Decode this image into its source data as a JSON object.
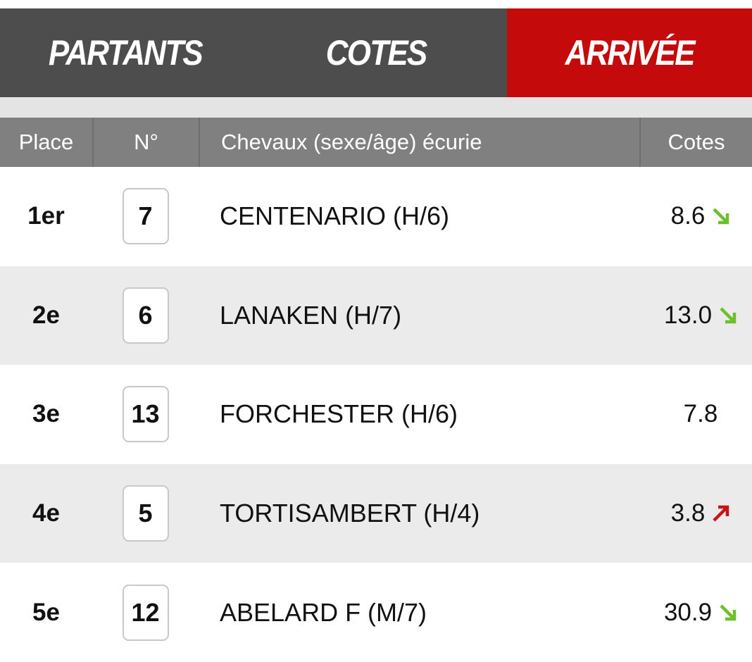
{
  "tabs": [
    "PARTANTS",
    "COTES",
    "ARRIVÉE"
  ],
  "active_tab": 2,
  "table": {
    "headers": [
      "Place",
      "N°",
      "Chevaux (sexe/âge) écurie",
      "Cotes"
    ],
    "rows": [
      {
        "place": "1er",
        "number": "7",
        "horse": "CENTENARIO (H/6)",
        "odds": "8.6",
        "trend": "down"
      },
      {
        "place": "2e",
        "number": "6",
        "horse": "LANAKEN (H/7)",
        "odds": "13.0",
        "trend": "down"
      },
      {
        "place": "3e",
        "number": "13",
        "horse": "FORCHESTER (H/6)",
        "odds": "7.8"
      },
      {
        "place": "4e",
        "number": "5",
        "horse": "TORTISAMBERT (H/4)",
        "odds": "3.8",
        "trend": "up"
      },
      {
        "place": "5e",
        "number": "12",
        "horse": "ABELARD F (M/7)",
        "odds": "30.9",
        "trend": "down"
      }
    ]
  }
}
